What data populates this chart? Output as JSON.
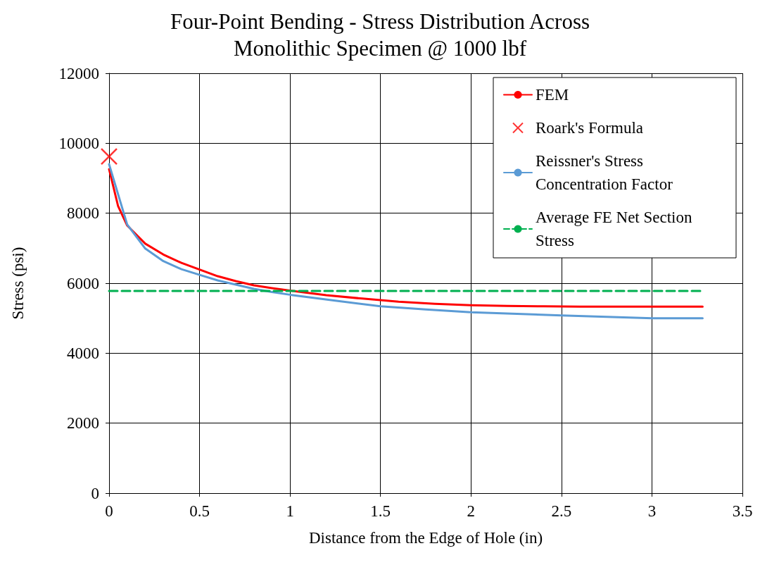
{
  "chart_data": {
    "type": "line",
    "title": "Four-Point Bending - Stress Distribution Across\nMonolithic Specimen @ 1000 lbf",
    "xlabel": "Distance from the Edge of Hole (in)",
    "ylabel": "Stress (psi)",
    "xlim": [
      0,
      3.5
    ],
    "xticks": [
      0,
      0.5,
      1,
      1.5,
      2,
      2.5,
      3,
      3.5
    ],
    "ylim": [
      0,
      12000
    ],
    "yticks": [
      0,
      2000,
      4000,
      6000,
      8000,
      10000,
      12000
    ],
    "grid": true,
    "legend": "top right",
    "marker": "none",
    "line_style": "solid",
    "series": [
      {
        "name": "FEM",
        "color": "#ff0000",
        "x": [
          0,
          0.05,
          0.1,
          0.2,
          0.3,
          0.4,
          0.5,
          0.6,
          0.7,
          0.8,
          0.9,
          1.0,
          1.2,
          1.4,
          1.6,
          1.8,
          2.0,
          2.2,
          2.4,
          2.6,
          2.8,
          3.0,
          3.28
        ],
        "values": [
          9260,
          8200,
          7650,
          7130,
          6820,
          6580,
          6390,
          6200,
          6060,
          5940,
          5860,
          5790,
          5660,
          5560,
          5470,
          5410,
          5370,
          5350,
          5340,
          5330,
          5330,
          5330,
          5330
        ]
      },
      {
        "name": "Roark's Formula",
        "type": "scatter",
        "marker": "cross",
        "color": "#ff0000",
        "x": [
          0
        ],
        "values": [
          9620
        ]
      },
      {
        "name": "Reissner's Stress Concentration Factor",
        "color": "#5b9bd5",
        "x": [
          0,
          0.1,
          0.2,
          0.3,
          0.4,
          0.5,
          0.6,
          0.7,
          0.8,
          0.9,
          1.0,
          1.25,
          1.5,
          1.75,
          2.0,
          2.5,
          3.0,
          3.28
        ],
        "values": [
          9400,
          7680,
          6990,
          6630,
          6400,
          6240,
          6080,
          5960,
          5840,
          5750,
          5670,
          5500,
          5340,
          5250,
          5170,
          5080,
          5000,
          5000
        ]
      },
      {
        "name": "Average FE Net Section Stress",
        "color": "#00b050",
        "line_style": "dashed",
        "x": [
          0,
          3.28
        ],
        "values": [
          5780,
          5780
        ]
      }
    ]
  }
}
